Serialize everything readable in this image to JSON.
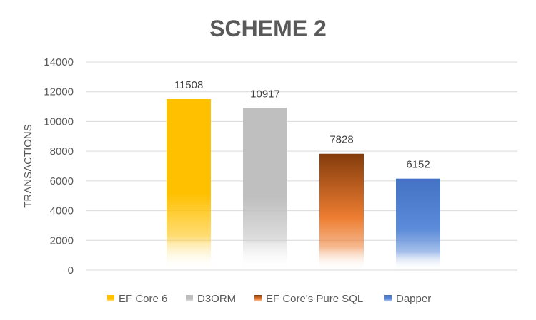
{
  "chart_data": {
    "type": "bar",
    "title": "SCHEME 2",
    "xlabel": "",
    "ylabel": "TRANSACTIONS",
    "ylim": [
      0,
      14000
    ],
    "yticks": [
      0,
      2000,
      4000,
      6000,
      8000,
      10000,
      12000,
      14000
    ],
    "grid": true,
    "legend_position": "bottom",
    "categories": [
      "EF Core 6",
      "D3ORM",
      "EF Core's Pure SQL",
      "Dapper"
    ],
    "values": [
      11508,
      10917,
      7828,
      6152
    ],
    "data_labels": [
      "11508",
      "10917",
      "7828",
      "6152"
    ],
    "colors": [
      "#FFC000",
      "#BFBFBF",
      "#843C0C",
      "#4472C4"
    ],
    "legend": [
      "EF Core 6",
      "D3ORM",
      "EF Core's Pure SQL",
      "Dapper"
    ]
  }
}
